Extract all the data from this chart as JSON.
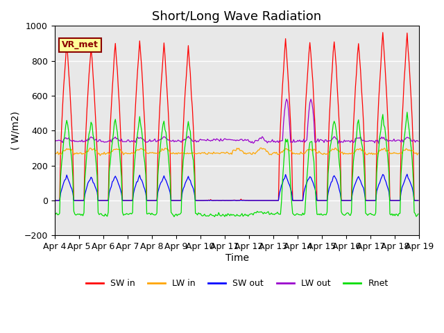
{
  "title": "Short/Long Wave Radiation",
  "ylabel": "( W/m2)",
  "xlabel": "Time",
  "ylim": [
    -200,
    1000
  ],
  "xlim": [
    0,
    360
  ],
  "x_tick_labels": [
    "Apr 4",
    "Apr 5",
    "Apr 6",
    "Apr 7",
    "Apr 8",
    "Apr 9",
    "Apr 10",
    "Apr 11",
    "Apr 12",
    "Apr 13",
    "Apr 14",
    "Apr 15",
    "Apr 16",
    "Apr 17",
    "Apr 18",
    "Apr 19"
  ],
  "x_tick_positions": [
    0,
    24,
    48,
    72,
    96,
    120,
    144,
    168,
    192,
    216,
    240,
    264,
    288,
    312,
    336,
    360
  ],
  "series_colors": {
    "SW_in": "#ff0000",
    "LW_in": "#ffa500",
    "SW_out": "#0000ff",
    "LW_out": "#9900cc",
    "Rnet": "#00dd00"
  },
  "series_labels": [
    "SW in",
    "LW in",
    "SW out",
    "LW out",
    "Rnet"
  ],
  "annotation_label": "VR_met",
  "background_color": "#e8e8e8",
  "fig_background": "#ffffff",
  "grid_color": "#ffffff",
  "title_fontsize": 13,
  "hours_per_day": 24,
  "num_days": 15
}
